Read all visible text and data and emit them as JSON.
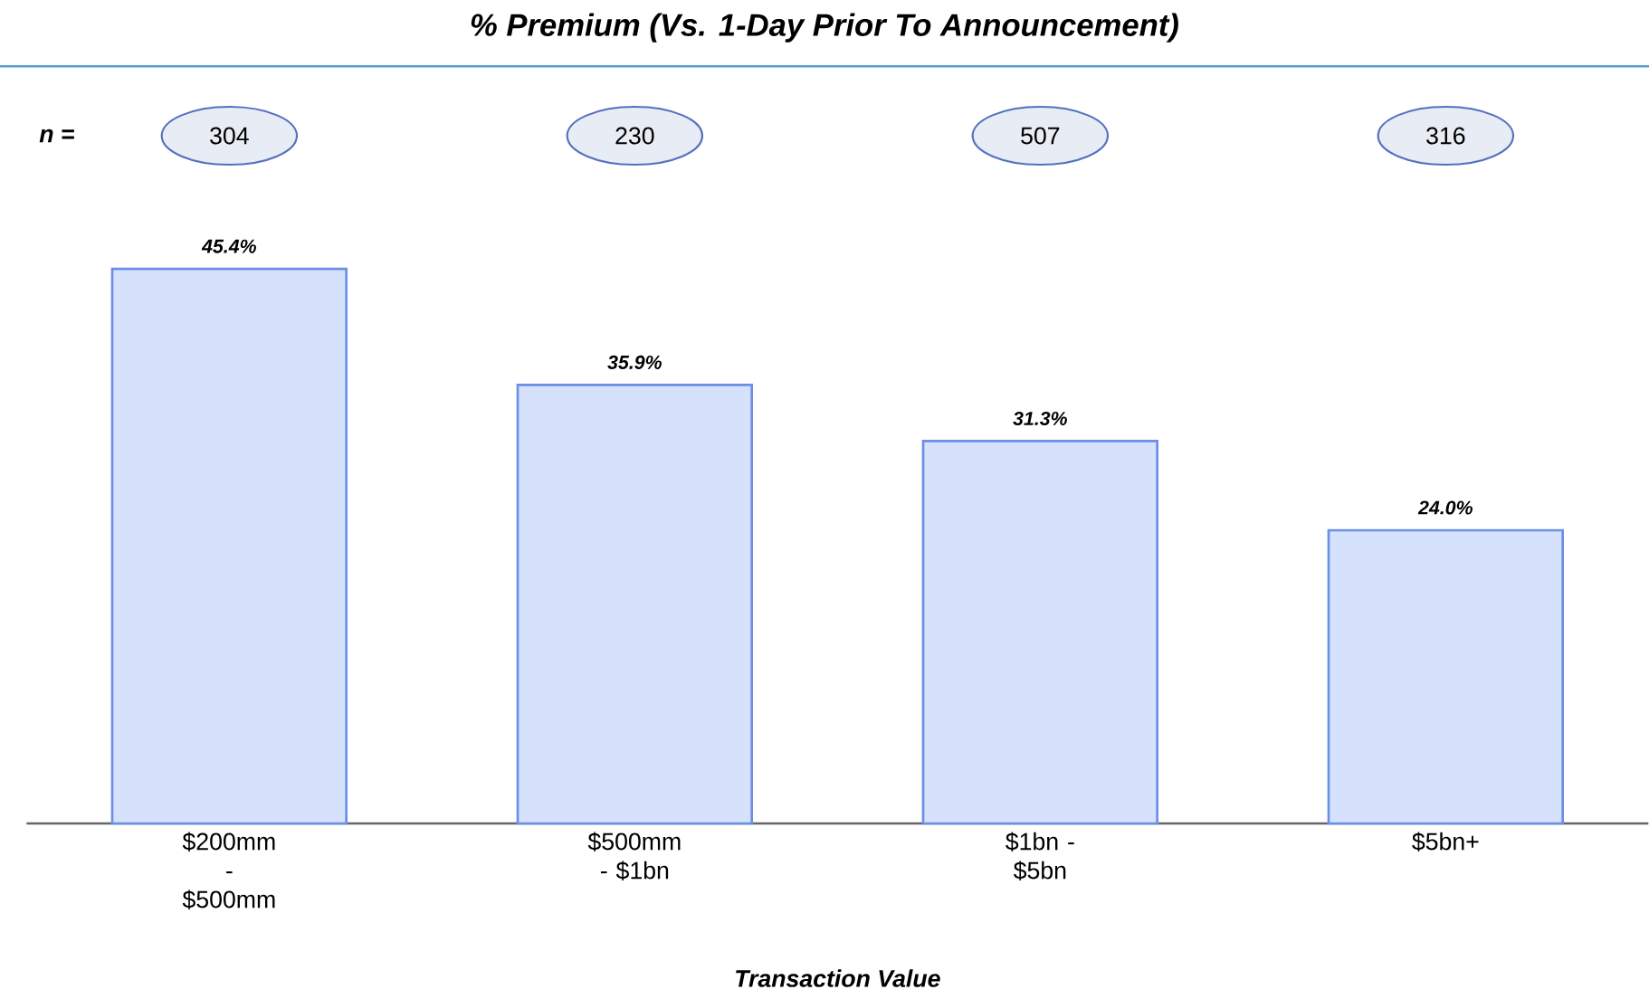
{
  "chart_data": {
    "type": "bar",
    "title": "% Premium (Vs. 1-Day Prior To Announcement)",
    "xlabel": "Transaction Value",
    "categories": [
      "$200mm - $500mm",
      "$500mm - $1bn",
      "$1bn - $5bn",
      "$5bn+"
    ],
    "values": [
      45.4,
      35.9,
      31.3,
      24.0
    ],
    "value_labels": [
      "45.4%",
      "35.9%",
      "31.3%",
      "24.0%"
    ],
    "color": "#d6e1fb",
    "annotations": [
      "n =",
      "304",
      "230",
      "507",
      "316"
    ]
  }
}
